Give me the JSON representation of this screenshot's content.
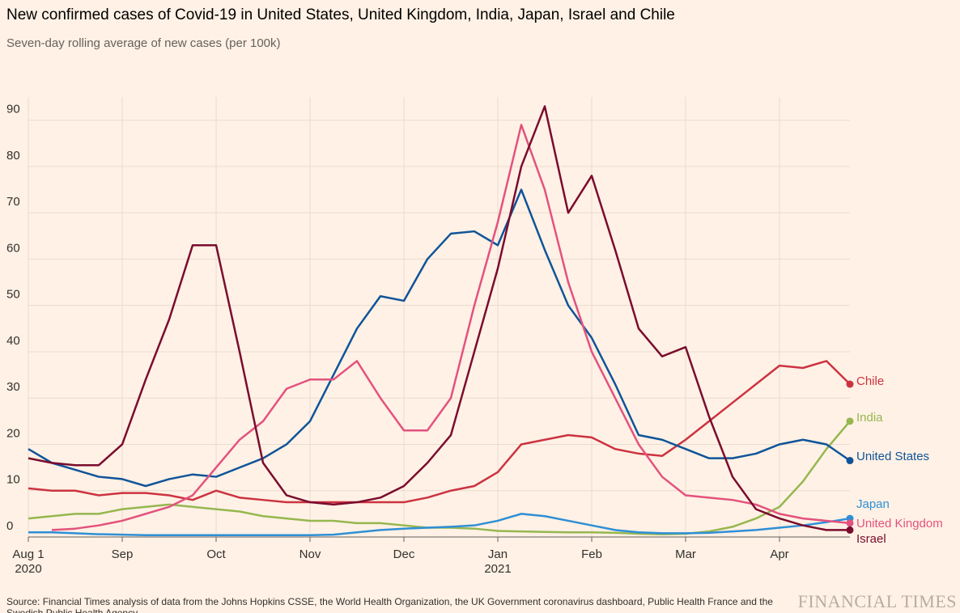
{
  "chart_data": {
    "type": "line",
    "title": "New confirmed cases of Covid-19 in United States, United Kingdom, India, Japan, Israel and Chile",
    "subtitle": "Seven-day rolling average of new cases (per 100k)",
    "source": "Source: Financial Times analysis of data from the Johns Hopkins CSSE, the World Health Organization, the UK Government coronavirus dashboard, Public Health France and the Swedish Public Health Agency",
    "brand": "FINANCIAL TIMES",
    "categories": [
      "Aug 1\n2020",
      null,
      null,
      null,
      "Sep",
      null,
      null,
      null,
      "Oct",
      null,
      null,
      null,
      "Nov",
      null,
      null,
      null,
      "Dec",
      null,
      null,
      null,
      "Jan\n2021",
      null,
      null,
      null,
      "Feb",
      null,
      null,
      null,
      "Mar",
      null,
      null,
      null,
      "Apr",
      null,
      null,
      null
    ],
    "ylim": [
      0,
      95
    ],
    "yticks": [
      0,
      10,
      20,
      30,
      40,
      50,
      60,
      70,
      80,
      90
    ],
    "grid": true,
    "series": [
      {
        "name": "Chile",
        "color": "#cc3340",
        "values": [
          10.5,
          10,
          10,
          9,
          9.5,
          9.5,
          9,
          8,
          10,
          8.5,
          8,
          7.5,
          7.5,
          7.5,
          7.5,
          7.5,
          7.5,
          8.5,
          10,
          11,
          14,
          20,
          21,
          22,
          21.5,
          19,
          18,
          17.5,
          21,
          25,
          29,
          33,
          37,
          36.5,
          38,
          33
        ]
      },
      {
        "name": "India",
        "color": "#96b74f",
        "values": [
          4,
          4.5,
          5,
          5,
          6,
          6.5,
          7,
          6.5,
          6,
          5.5,
          4.5,
          4,
          3.5,
          3.5,
          3,
          3,
          2.5,
          2,
          2,
          1.8,
          1.3,
          1.2,
          1.1,
          1,
          1,
          0.9,
          0.7,
          0.6,
          0.7,
          1.2,
          2.2,
          4,
          6.5,
          12,
          19,
          25
        ]
      },
      {
        "name": "United States",
        "color": "#0f5499",
        "values": [
          19,
          16,
          14.5,
          13,
          12.5,
          11,
          12.5,
          13.5,
          13,
          15,
          17,
          20,
          25,
          35,
          45,
          52,
          51,
          60,
          65.5,
          66,
          63,
          75,
          62,
          50,
          43,
          33,
          22,
          21,
          19,
          17,
          17,
          18,
          20,
          21,
          20,
          16.5
        ]
      },
      {
        "name": "Japan",
        "color": "#2e8fd6",
        "values": [
          1,
          1,
          0.8,
          0.6,
          0.5,
          0.4,
          0.4,
          0.4,
          0.4,
          0.4,
          0.4,
          0.4,
          0.4,
          0.5,
          1,
          1.5,
          1.8,
          2,
          2.2,
          2.5,
          3.5,
          5,
          4.5,
          3.5,
          2.5,
          1.5,
          1,
          0.8,
          0.8,
          0.9,
          1.2,
          1.5,
          2,
          2.5,
          3.2,
          4
        ]
      },
      {
        "name": "United Kingdom",
        "color": "#e3527e",
        "values": [
          null,
          1.5,
          1.8,
          2.5,
          3.5,
          5,
          6.5,
          9,
          15,
          21,
          25,
          32,
          34,
          34,
          38,
          30,
          23,
          23,
          30,
          50,
          68,
          89,
          75,
          55,
          40,
          30,
          20,
          13,
          9,
          8.5,
          8,
          7,
          5,
          4,
          3.5,
          3
        ]
      },
      {
        "name": "Israel",
        "color": "#7a0c2e",
        "values": [
          17,
          16,
          15.5,
          15.5,
          20,
          34,
          47,
          63,
          63,
          40,
          16,
          9,
          7.5,
          7,
          7.5,
          8.5,
          11,
          16,
          22,
          40,
          58,
          80,
          93,
          70,
          78,
          62,
          45,
          39,
          41,
          26,
          13,
          6,
          4,
          2.5,
          1.5,
          1.5
        ]
      }
    ]
  }
}
